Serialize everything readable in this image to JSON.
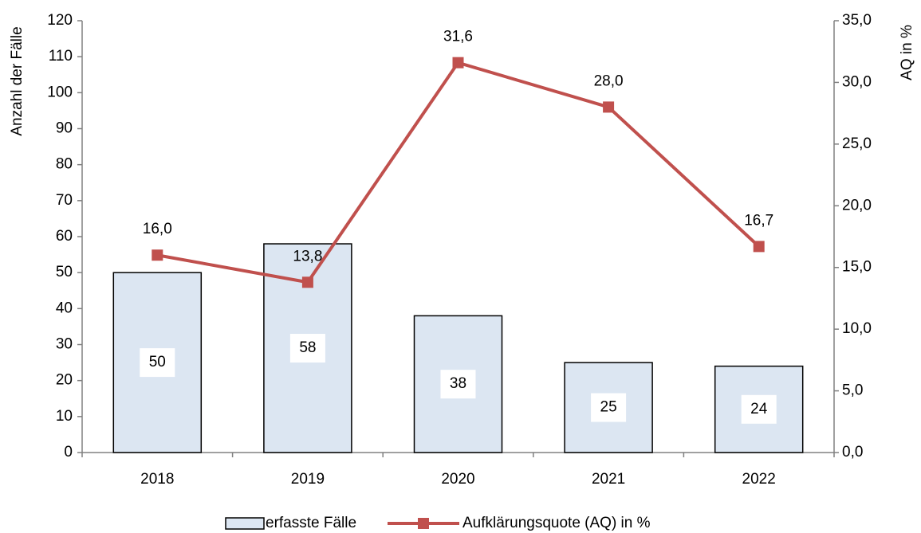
{
  "chart_data": {
    "type": "bar",
    "categories": [
      "2018",
      "2019",
      "2020",
      "2021",
      "2022"
    ],
    "y_label": "Anzahl der Fälle",
    "y2_label": "AQ in %",
    "ylim": [
      0,
      120
    ],
    "yticks": [
      0,
      10,
      20,
      30,
      40,
      50,
      60,
      70,
      80,
      90,
      100,
      110,
      120
    ],
    "y2lim": [
      0,
      35
    ],
    "y2ticks": [
      {
        "value": 0,
        "label": "0,0"
      },
      {
        "value": 5,
        "label": "5,0"
      },
      {
        "value": 10,
        "label": "10,0"
      },
      {
        "value": 15,
        "label": "15,0"
      },
      {
        "value": 20,
        "label": "20,0"
      },
      {
        "value": 25,
        "label": "25,0"
      },
      {
        "value": 30,
        "label": "30,0"
      },
      {
        "value": 35,
        "label": "35,0"
      }
    ],
    "grid": false,
    "legend": "bottom",
    "series": [
      {
        "name": "erfasste Fälle",
        "type": "bar",
        "color": "#dce6f2",
        "values": [
          50,
          58,
          38,
          25,
          24
        ]
      },
      {
        "name": "Aufklärungsquote (AQ) in %",
        "type": "line",
        "axis": "y2",
        "color": "#c0504d",
        "values": [
          16.0,
          13.8,
          31.6,
          28.0,
          16.7
        ],
        "value_labels": [
          "16,0",
          "13,8",
          "31,6",
          "28,0",
          "16,7"
        ]
      }
    ]
  }
}
